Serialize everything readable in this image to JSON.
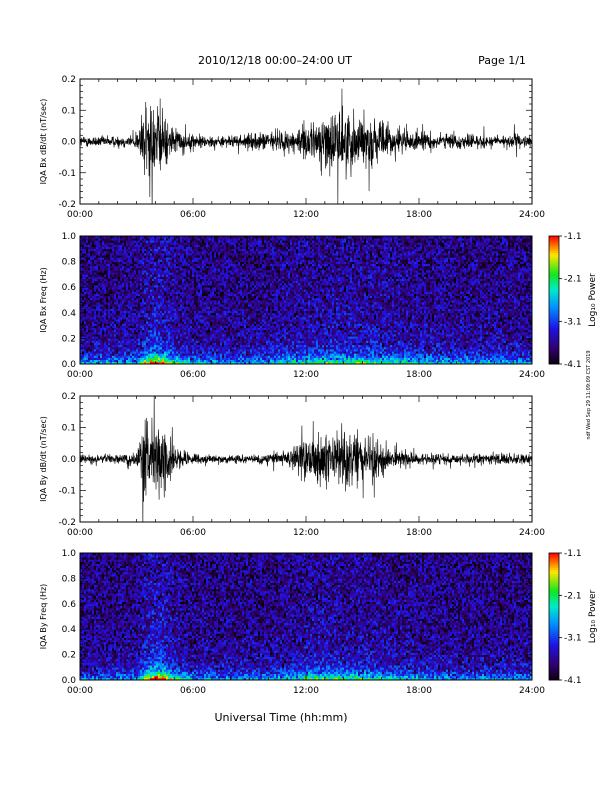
{
  "header": {
    "title": "2010/12/18  00:00–24:00 UT",
    "page": "Page 1/1"
  },
  "side_text": "ndf Wed Sep 29 11:09:09 CST 2019",
  "xlabel": "Universal Time (hh:mm)",
  "chart_data": [
    {
      "type": "line",
      "ylabel": "IQA Bx dB/dt (nT/sec)",
      "x_ticks": [
        "00:00",
        "06:00",
        "12:00",
        "18:00",
        "24:00"
      ],
      "y_ticks": [
        "-0.2",
        "-0.1",
        "0.0",
        "0.1",
        "0.2"
      ],
      "xlim": [
        0,
        24
      ],
      "ylim": [
        -0.2,
        0.2
      ],
      "envelope": {
        "hours": [
          0,
          1,
          2,
          3,
          3.4,
          3.7,
          4.0,
          4.3,
          4.6,
          5.0,
          5.5,
          6,
          7,
          8,
          9,
          10,
          11,
          11.5,
          12,
          12.5,
          13,
          13.5,
          14,
          14.5,
          15,
          15.5,
          16,
          17,
          18,
          19,
          20,
          21,
          22,
          23,
          24
        ],
        "amplitude": [
          0.03,
          0.03,
          0.03,
          0.04,
          0.2,
          0.2,
          0.2,
          0.2,
          0.12,
          0.07,
          0.05,
          0.04,
          0.03,
          0.03,
          0.04,
          0.05,
          0.06,
          0.07,
          0.08,
          0.11,
          0.15,
          0.17,
          0.17,
          0.15,
          0.14,
          0.13,
          0.1,
          0.07,
          0.05,
          0.04,
          0.04,
          0.04,
          0.03,
          0.04,
          0.03
        ]
      }
    },
    {
      "type": "heatmap",
      "ylabel": "IQA Bx Freq (Hz)",
      "x_ticks": [
        "00:00",
        "06:00",
        "12:00",
        "18:00",
        "24:00"
      ],
      "y_ticks": [
        "0.0",
        "0.2",
        "0.4",
        "0.6",
        "0.8",
        "1.0"
      ],
      "xlim": [
        0,
        24
      ],
      "ylim": [
        0,
        1.0
      ],
      "colorbar": {
        "label": "Log₁₀ Power",
        "ticks": [
          "-1.1",
          "-2.1",
          "-3.1",
          "-4.1"
        ],
        "range": [
          -4.1,
          -1.1
        ]
      },
      "activity": {
        "hours": [
          0,
          3,
          3.5,
          4,
          4.5,
          5,
          6,
          8,
          10,
          12,
          14,
          16,
          18,
          20,
          22,
          24
        ],
        "level": [
          0.35,
          0.4,
          0.75,
          0.95,
          0.8,
          0.55,
          0.4,
          0.35,
          0.4,
          0.55,
          0.6,
          0.55,
          0.45,
          0.4,
          0.4,
          0.4
        ]
      }
    },
    {
      "type": "line",
      "ylabel": "IQA By dB/dt (nT/sec)",
      "x_ticks": [
        "00:00",
        "06:00",
        "12:00",
        "18:00",
        "24:00"
      ],
      "y_ticks": [
        "-0.2",
        "-0.1",
        "0.0",
        "0.1",
        "0.2"
      ],
      "xlim": [
        0,
        24
      ],
      "ylim": [
        -0.2,
        0.2
      ],
      "envelope": {
        "hours": [
          0,
          1,
          2,
          3,
          3.4,
          3.7,
          4.0,
          4.3,
          4.6,
          5.0,
          5.5,
          6,
          7,
          8,
          9,
          10,
          11,
          11.5,
          12,
          12.5,
          13,
          13.5,
          14,
          14.5,
          15,
          15.5,
          16,
          17,
          18,
          19,
          20,
          21,
          22,
          23,
          24
        ],
        "amplitude": [
          0.02,
          0.02,
          0.02,
          0.04,
          0.2,
          0.2,
          0.2,
          0.2,
          0.15,
          0.08,
          0.05,
          0.03,
          0.02,
          0.02,
          0.02,
          0.03,
          0.04,
          0.08,
          0.11,
          0.12,
          0.14,
          0.14,
          0.15,
          0.14,
          0.13,
          0.12,
          0.09,
          0.05,
          0.03,
          0.03,
          0.03,
          0.03,
          0.03,
          0.03,
          0.03
        ]
      }
    },
    {
      "type": "heatmap",
      "ylabel": "IQA By Freq (Hz)",
      "x_ticks": [
        "00:00",
        "06:00",
        "12:00",
        "18:00",
        "24:00"
      ],
      "y_ticks": [
        "0.0",
        "0.2",
        "0.4",
        "0.6",
        "0.8",
        "1.0"
      ],
      "xlim": [
        0,
        24
      ],
      "ylim": [
        0,
        1.0
      ],
      "colorbar": {
        "label": "Log₁₀ Power",
        "ticks": [
          "-1.1",
          "-2.1",
          "-3.1",
          "-4.1"
        ],
        "range": [
          -4.1,
          -1.1
        ]
      },
      "activity": {
        "hours": [
          0,
          3,
          3.5,
          4,
          4.5,
          5,
          6,
          8,
          10,
          11.5,
          12,
          14,
          16,
          18,
          20,
          22,
          24
        ],
        "level": [
          0.3,
          0.35,
          0.75,
          0.95,
          0.85,
          0.55,
          0.4,
          0.35,
          0.35,
          0.45,
          0.6,
          0.55,
          0.5,
          0.4,
          0.35,
          0.35,
          0.35
        ]
      }
    }
  ]
}
